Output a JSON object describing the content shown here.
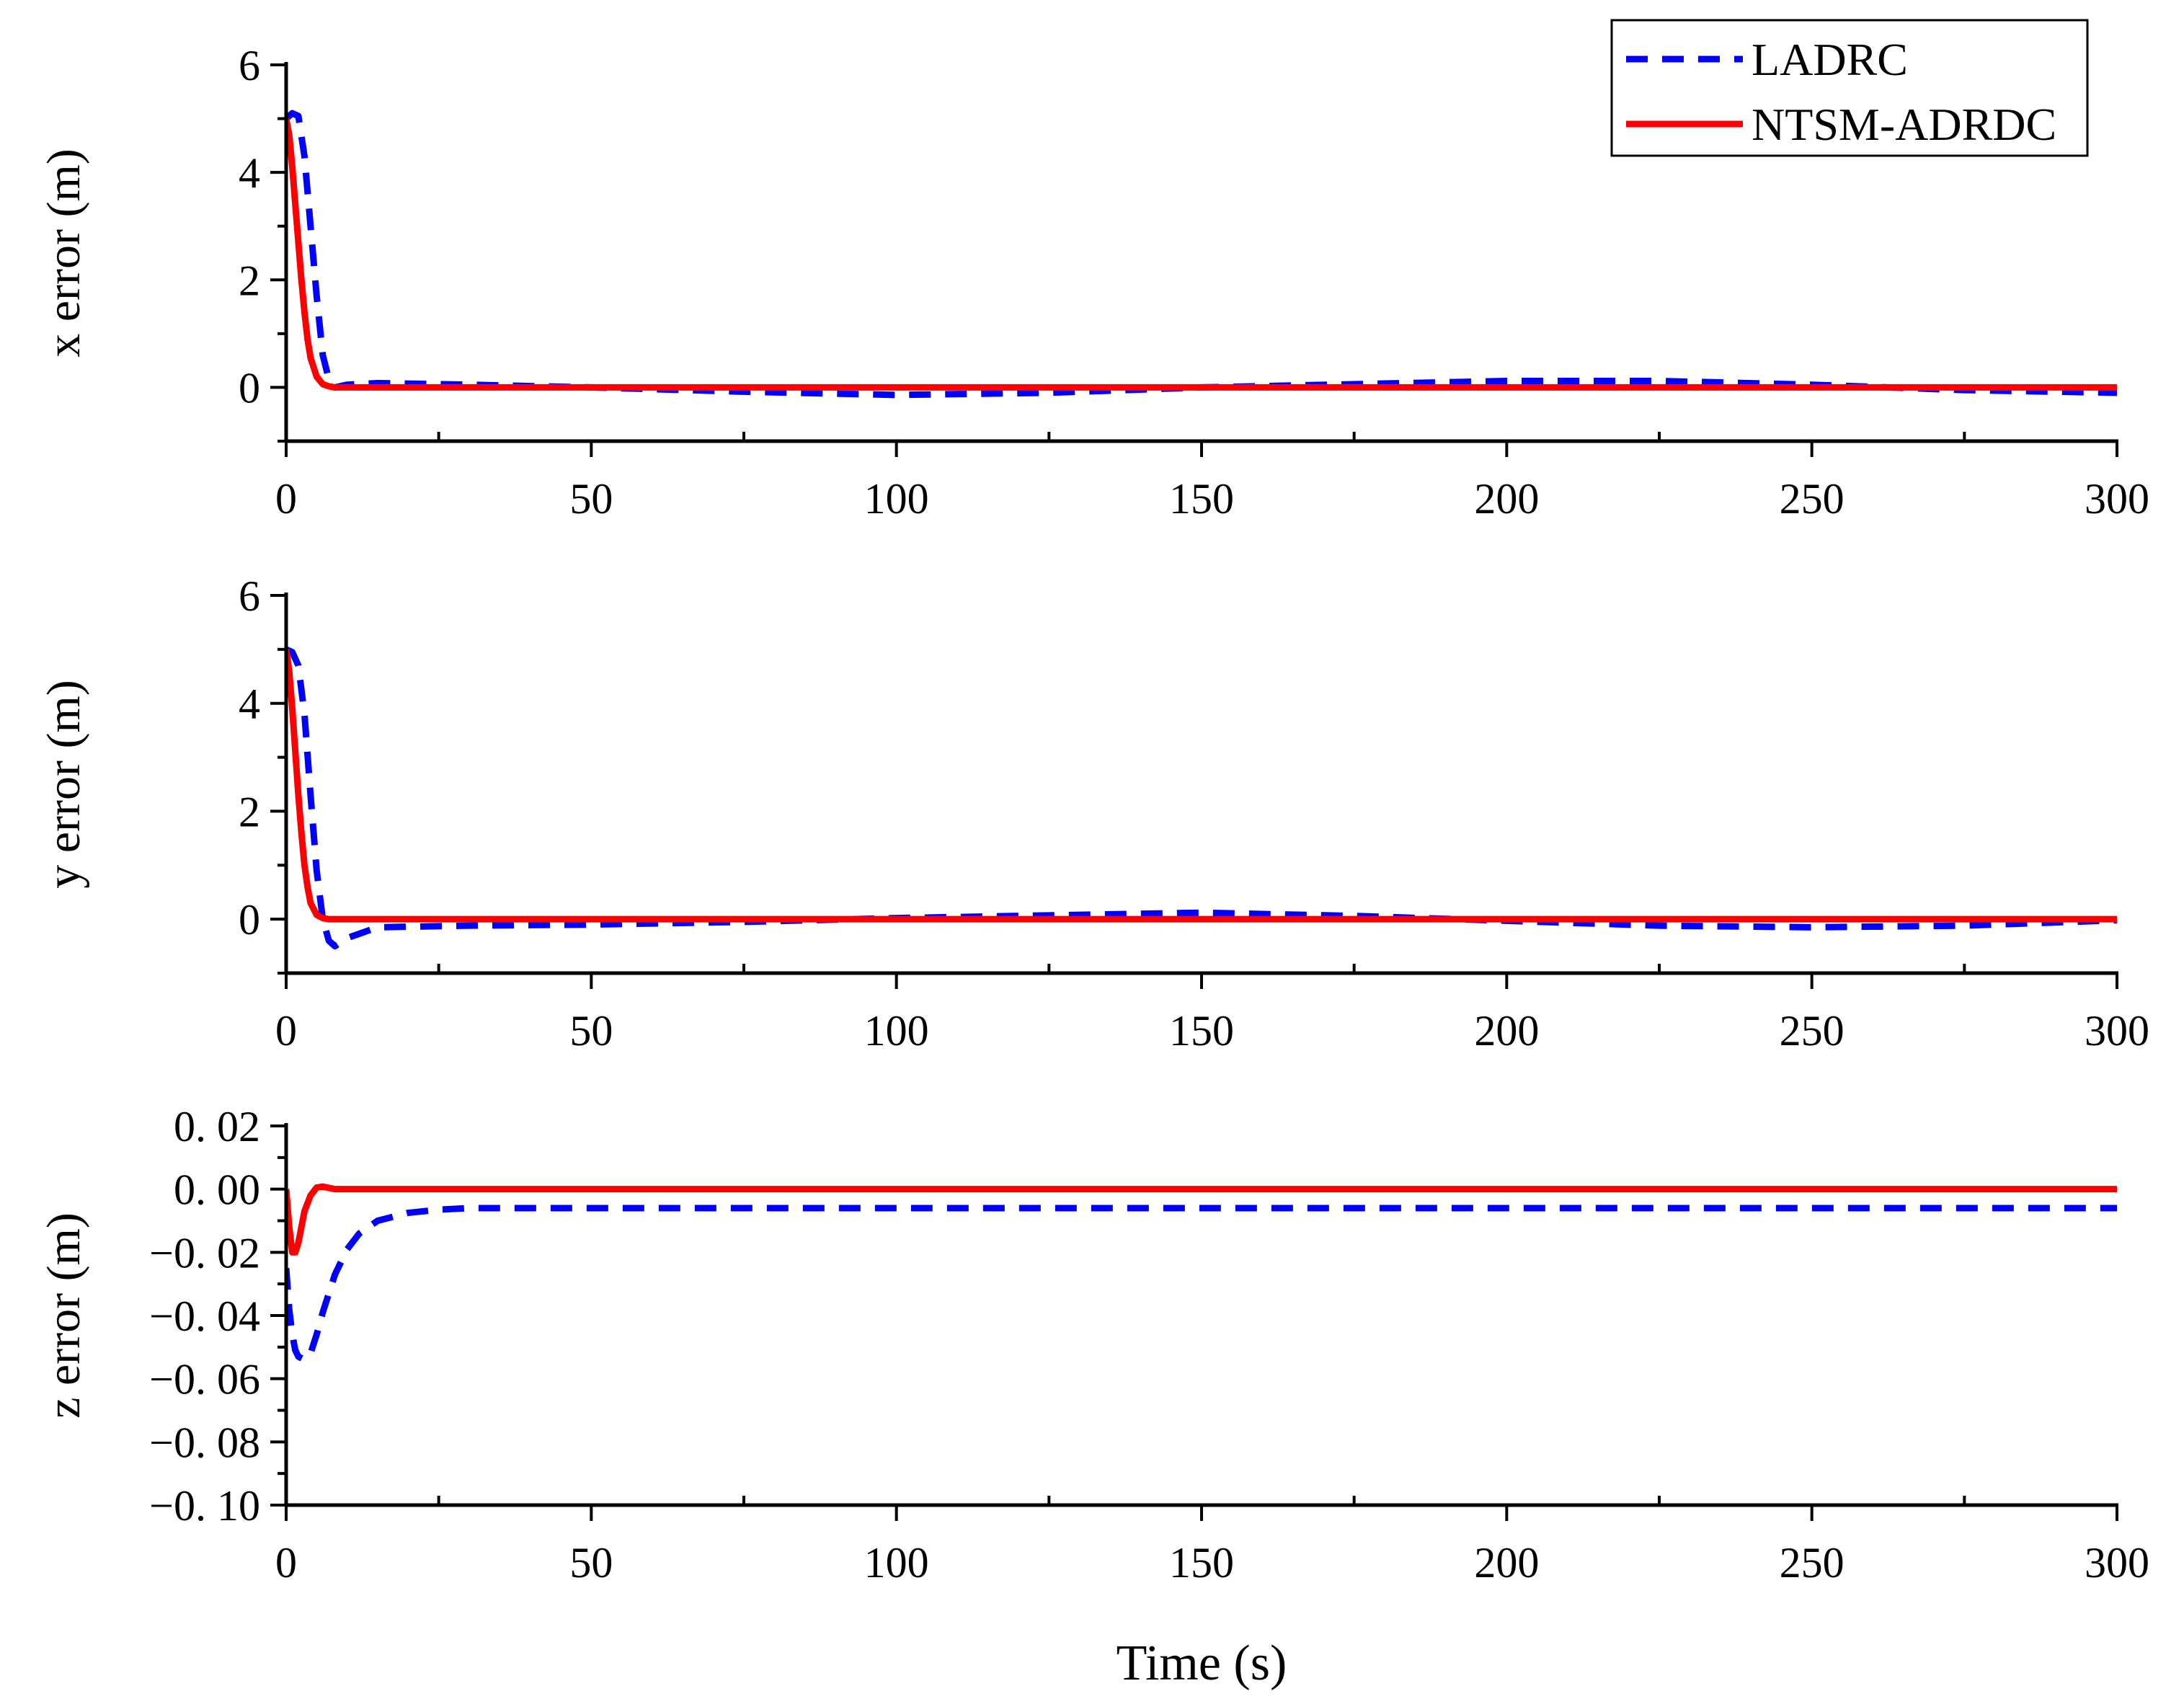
{
  "chart_data": {
    "type": "line",
    "xlabel": "Time (s)",
    "xlim": [
      0,
      300
    ],
    "x_ticks": [
      0,
      50,
      100,
      150,
      200,
      250,
      300
    ],
    "x_tick_labels": [
      "0",
      "50",
      "100",
      "150",
      "200",
      "250",
      "300"
    ],
    "legend": {
      "placement": "top-right",
      "entries": [
        {
          "name": "LADRC",
          "color": "#0000ff",
          "style": "dashed"
        },
        {
          "name": "NTSM-ADRDC",
          "color": "#ff0000",
          "style": "solid"
        }
      ]
    },
    "panels": [
      {
        "id": "x",
        "ylabel": "x error (m)",
        "ylim": [
          -1,
          6
        ],
        "y_ticks": [
          0,
          2,
          4,
          6
        ],
        "y_tick_labels": [
          "0",
          "2",
          "4",
          "6"
        ],
        "series": [
          {
            "name": "LADRC",
            "color": "#0000ff",
            "style": "dashed",
            "x": [
              0,
              1,
              2,
              3,
              4,
              5,
              6,
              7,
              8,
              10,
              15,
              30,
              50,
              75,
              100,
              125,
              150,
              175,
              200,
              225,
              250,
              275,
              300
            ],
            "y": [
              5.0,
              5.1,
              5.05,
              4.3,
              3.0,
              1.7,
              0.6,
              0.15,
              0.0,
              0.05,
              0.08,
              0.05,
              0.0,
              -0.08,
              -0.14,
              -0.1,
              0.0,
              0.06,
              0.12,
              0.12,
              0.05,
              -0.05,
              -0.1
            ]
          },
          {
            "name": "NTSM-ADRDC",
            "color": "#ff0000",
            "style": "solid",
            "x": [
              0,
              0.5,
              1,
              1.5,
              2,
              2.5,
              3,
              3.5,
              4,
              5,
              6,
              7,
              8,
              10,
              300
            ],
            "y": [
              5.0,
              4.7,
              4.1,
              3.4,
              2.7,
              2.0,
              1.4,
              0.9,
              0.55,
              0.2,
              0.06,
              0.02,
              0.0,
              0.0,
              0.0
            ]
          }
        ]
      },
      {
        "id": "y",
        "ylabel": "y error (m)",
        "ylim": [
          -1,
          6
        ],
        "y_ticks": [
          0,
          2,
          4,
          6
        ],
        "y_tick_labels": [
          "0",
          "2",
          "4",
          "6"
        ],
        "series": [
          {
            "name": "LADRC",
            "color": "#0000ff",
            "style": "dashed",
            "x": [
              0,
              1,
              2,
              3,
              4,
              5,
              6,
              7,
              8,
              10,
              15,
              30,
              50,
              75,
              100,
              125,
              150,
              175,
              200,
              225,
              250,
              275,
              300
            ],
            "y": [
              5.0,
              4.95,
              4.7,
              3.8,
              2.3,
              0.9,
              0.0,
              -0.4,
              -0.5,
              -0.35,
              -0.15,
              -0.12,
              -0.1,
              -0.05,
              0.02,
              0.07,
              0.12,
              0.06,
              -0.03,
              -0.12,
              -0.15,
              -0.12,
              -0.02
            ]
          },
          {
            "name": "NTSM-ADRDC",
            "color": "#ff0000",
            "style": "solid",
            "x": [
              0,
              0.5,
              1,
              1.5,
              2,
              2.5,
              3,
              3.5,
              4,
              5,
              6,
              7,
              8,
              10,
              300
            ],
            "y": [
              5.0,
              4.6,
              3.9,
              3.1,
              2.3,
              1.6,
              1.0,
              0.6,
              0.3,
              0.08,
              0.02,
              0.0,
              0.0,
              0.0,
              0.0
            ]
          }
        ]
      },
      {
        "id": "z",
        "ylabel": "z error (m)",
        "ylim": [
          -0.1,
          0.02
        ],
        "y_ticks": [
          0.02,
          0.0,
          -0.02,
          -0.04,
          -0.06,
          -0.08,
          -0.1
        ],
        "y_tick_labels": [
          "0. 02",
          "0. 00",
          "−0. 02",
          "−0. 04",
          "−0. 06",
          "−0. 08",
          "−0. 10"
        ],
        "series": [
          {
            "name": "LADRC",
            "color": "#0000ff",
            "style": "dashed",
            "x": [
              0,
              0.5,
              1,
              1.5,
              2,
              3,
              4,
              5,
              6,
              8,
              10,
              12,
              15,
              20,
              25,
              30,
              300
            ],
            "y": [
              -0.025,
              -0.038,
              -0.046,
              -0.051,
              -0.053,
              -0.054,
              -0.052,
              -0.046,
              -0.039,
              -0.027,
              -0.019,
              -0.014,
              -0.01,
              -0.0075,
              -0.0065,
              -0.006,
              -0.006
            ]
          },
          {
            "name": "NTSM-ADRDC",
            "color": "#ff0000",
            "style": "solid",
            "x": [
              0,
              0.5,
              1,
              1.5,
              2,
              2.5,
              3,
              4,
              5,
              6,
              8,
              10,
              300
            ],
            "y": [
              0.0,
              -0.012,
              -0.02,
              -0.02,
              -0.017,
              -0.012,
              -0.007,
              -0.002,
              0.0005,
              0.0008,
              0.0,
              0.0,
              0.0
            ]
          }
        ]
      }
    ]
  }
}
